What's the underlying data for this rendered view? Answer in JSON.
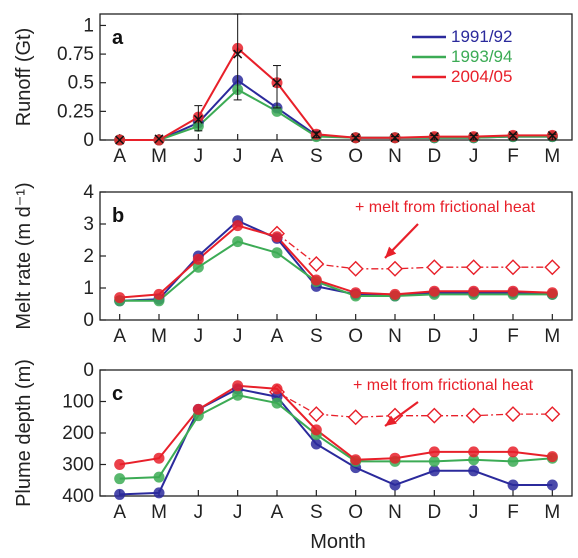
{
  "chart_data": [
    {
      "type": "line",
      "panel_label": "a",
      "ylabel": "Runoff (Gt)",
      "xlabel": "",
      "categories": [
        "A",
        "M",
        "J",
        "J",
        "A",
        "S",
        "O",
        "N",
        "D",
        "J",
        "F",
        "M"
      ],
      "ylim": [
        0,
        1.1
      ],
      "yticks": [
        0,
        0.25,
        0.5,
        0.75,
        1
      ],
      "ytick_labels": [
        "0",
        "0.25",
        "0.5",
        "0.75",
        "1"
      ],
      "legend_position": "top-right",
      "series": [
        {
          "name": "1991/92",
          "color": "#2b2a9c",
          "values": [
            0,
            0,
            0.15,
            0.52,
            0.28,
            0.04,
            0.02,
            0.02,
            0.02,
            0.02,
            0.03,
            0.03
          ]
        },
        {
          "name": "1993/94",
          "color": "#3cab55",
          "values": [
            0,
            0,
            0.12,
            0.44,
            0.25,
            0.03,
            0.02,
            0.02,
            0.02,
            0.02,
            0.03,
            0.03
          ]
        },
        {
          "name": "2004/05",
          "color": "#e8202a",
          "values": [
            0,
            0,
            0.2,
            0.8,
            0.5,
            0.05,
            0.02,
            0.02,
            0.03,
            0.03,
            0.04,
            0.04
          ]
        }
      ],
      "markers": {
        "name": "",
        "color": "#111111",
        "values": [
          0,
          0.01,
          0.18,
          0.75,
          0.5,
          0.05,
          0.02,
          0.02,
          0.03,
          0.03,
          0.04,
          0.04
        ],
        "err_low": [
          0,
          0,
          0.08,
          0.35,
          0.28,
          0.02,
          0,
          0,
          0,
          0,
          0,
          0
        ],
        "err_high": [
          0,
          0,
          0.3,
          1.15,
          0.65,
          0.07,
          0.03,
          0.03,
          0.04,
          0.04,
          0.05,
          0.05
        ]
      }
    },
    {
      "type": "line",
      "panel_label": "b",
      "ylabel": "Melt rate (m d⁻¹)",
      "xlabel": "",
      "categories": [
        "A",
        "M",
        "J",
        "J",
        "A",
        "S",
        "O",
        "N",
        "D",
        "J",
        "F",
        "M"
      ],
      "ylim": [
        0,
        4
      ],
      "yticks": [
        0,
        1,
        2,
        3,
        4
      ],
      "ytick_labels": [
        "0",
        "1",
        "2",
        "3",
        "4"
      ],
      "series": [
        {
          "name": "1991/92",
          "color": "#2b2a9c",
          "values": [
            0.6,
            0.65,
            2.0,
            3.1,
            2.55,
            1.05,
            0.8,
            0.75,
            0.85,
            0.85,
            0.85,
            0.8
          ]
        },
        {
          "name": "1993/94",
          "color": "#3cab55",
          "values": [
            0.6,
            0.6,
            1.65,
            2.45,
            2.1,
            1.2,
            0.75,
            0.75,
            0.8,
            0.8,
            0.8,
            0.8
          ]
        },
        {
          "name": "2004/05",
          "color": "#e8202a",
          "values": [
            0.7,
            0.8,
            1.9,
            2.95,
            2.6,
            1.25,
            0.85,
            0.8,
            0.9,
            0.9,
            0.9,
            0.85
          ]
        }
      ],
      "frictional": {
        "color": "#e8202a",
        "start_index": 4,
        "values": [
          2.7,
          1.75,
          1.6,
          1.6,
          1.65,
          1.65,
          1.65,
          1.65
        ]
      },
      "annotation": "+ melt from frictional heat"
    },
    {
      "type": "line",
      "panel_label": "c",
      "ylabel": "Plume depth (m)",
      "xlabel": "Month",
      "categories": [
        "A",
        "M",
        "J",
        "J",
        "A",
        "S",
        "O",
        "N",
        "D",
        "J",
        "F",
        "M"
      ],
      "ylim": [
        400,
        0
      ],
      "inverted_y": true,
      "yticks": [
        0,
        100,
        200,
        300,
        400
      ],
      "ytick_labels": [
        "0",
        "100",
        "200",
        "300",
        "400"
      ],
      "series": [
        {
          "name": "1991/92",
          "color": "#2b2a9c",
          "values": [
            395,
            390,
            125,
            60,
            85,
            235,
            310,
            365,
            320,
            320,
            365,
            365
          ]
        },
        {
          "name": "1993/94",
          "color": "#3cab55",
          "values": [
            345,
            340,
            145,
            80,
            105,
            205,
            290,
            290,
            290,
            285,
            290,
            280
          ]
        },
        {
          "name": "2004/05",
          "color": "#e8202a",
          "values": [
            300,
            280,
            125,
            50,
            60,
            190,
            285,
            280,
            260,
            260,
            260,
            275
          ]
        }
      ],
      "frictional": {
        "color": "#e8202a",
        "start_index": 4,
        "values": [
          70,
          140,
          150,
          145,
          145,
          145,
          140,
          140
        ]
      },
      "annotation": "+ melt from frictional heat"
    }
  ]
}
